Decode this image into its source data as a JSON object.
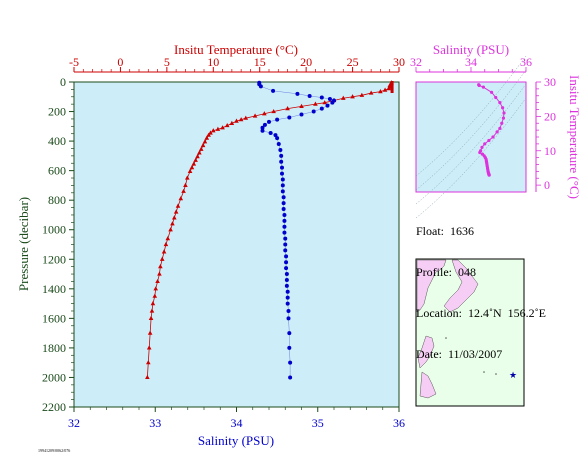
{
  "colors": {
    "temperature": "#cc0000",
    "salinity": "#0000cc",
    "ts_curve": "#dd33dd",
    "plot_bg": "#cdeef8",
    "axis_green": "#1a4a1a",
    "map_land": "#f5cdf5",
    "map_sea": "#eaffea"
  },
  "labels": {
    "top_axis": "Insitu Temperature (°C)",
    "bottom_axis": "Salinity (PSU)",
    "left_axis": "Pressure (decibar)",
    "ts_top_axis": "Salinity (PSU)",
    "ts_right_axis": "Insitu Temperature (°C)",
    "footer": "19941209/0062/076"
  },
  "info": {
    "float": "Float:  1636",
    "profile": "Profile:  048",
    "location": "Location:  12.4˚N  156.2˚E",
    "date": "Date:  11/03/2007"
  },
  "chart_data": [
    {
      "type": "line",
      "name": "profile",
      "pressure_range": [
        2200,
        0
      ],
      "pressure_ticks": [
        0,
        200,
        400,
        600,
        800,
        1000,
        1200,
        1400,
        1600,
        1800,
        2000,
        2200
      ],
      "temperature_range": [
        -5,
        30
      ],
      "temperature_ticks": [
        -5,
        0,
        5,
        10,
        15,
        20,
        25,
        30
      ],
      "salinity_range": [
        32,
        36
      ],
      "salinity_ticks": [
        32,
        33,
        34,
        35,
        36
      ],
      "series": [
        {
          "name": "Insitu Temperature",
          "marker": "triangle",
          "points": [
            [
              29.2,
              5
            ],
            [
              29.1,
              15
            ],
            [
              29.0,
              25
            ],
            [
              29.0,
              35
            ],
            [
              28.9,
              45
            ],
            [
              28.5,
              55
            ],
            [
              28.0,
              65
            ],
            [
              27.0,
              75
            ],
            [
              26.0,
              90
            ],
            [
              25.0,
              100
            ],
            [
              24.0,
              110
            ],
            [
              23.0,
              125
            ],
            [
              22.0,
              140
            ],
            [
              21.0,
              150
            ],
            [
              19.5,
              165
            ],
            [
              18.0,
              180
            ],
            [
              16.5,
              200
            ],
            [
              15.5,
              215
            ],
            [
              14.5,
              230
            ],
            [
              13.5,
              245
            ],
            [
              13.0,
              255
            ],
            [
              12.5,
              265
            ],
            [
              12.0,
              280
            ],
            [
              11.5,
              295
            ],
            [
              11.0,
              310
            ],
            [
              10.5,
              320
            ],
            [
              10.0,
              330
            ],
            [
              9.7,
              345
            ],
            [
              9.5,
              360
            ],
            [
              9.3,
              380
            ],
            [
              9.1,
              405
            ],
            [
              8.9,
              430
            ],
            [
              8.7,
              455
            ],
            [
              8.5,
              480
            ],
            [
              8.3,
              505
            ],
            [
              8.1,
              530
            ],
            [
              7.9,
              555
            ],
            [
              7.7,
              580
            ],
            [
              7.5,
              605
            ],
            [
              7.2,
              650
            ],
            [
              7.0,
              700
            ],
            [
              6.8,
              740
            ],
            [
              6.5,
              790
            ],
            [
              6.2,
              840
            ],
            [
              6.0,
              880
            ],
            [
              5.8,
              920
            ],
            [
              5.6,
              960
            ],
            [
              5.4,
              1000
            ],
            [
              5.1,
              1060
            ],
            [
              4.9,
              1100
            ],
            [
              4.7,
              1150
            ],
            [
              4.5,
              1200
            ],
            [
              4.3,
              1250
            ],
            [
              4.2,
              1300
            ],
            [
              4.0,
              1350
            ],
            [
              3.8,
              1400
            ],
            [
              3.7,
              1450
            ],
            [
              3.5,
              1500
            ],
            [
              3.4,
              1550
            ],
            [
              3.3,
              1600
            ],
            [
              3.2,
              1700
            ],
            [
              3.1,
              1800
            ],
            [
              3.0,
              1900
            ],
            [
              2.9,
              2000
            ]
          ]
        },
        {
          "name": "Salinity",
          "marker": "dot",
          "points": [
            [
              34.28,
              5
            ],
            [
              34.28,
              15
            ],
            [
              34.3,
              30
            ],
            [
              34.45,
              60
            ],
            [
              34.75,
              80
            ],
            [
              34.9,
              95
            ],
            [
              35.05,
              105
            ],
            [
              35.15,
              115
            ],
            [
              35.2,
              125
            ],
            [
              35.18,
              140
            ],
            [
              35.12,
              160
            ],
            [
              35.05,
              180
            ],
            [
              34.95,
              200
            ],
            [
              34.8,
              220
            ],
            [
              34.65,
              240
            ],
            [
              34.5,
              255
            ],
            [
              34.4,
              270
            ],
            [
              34.35,
              290
            ],
            [
              34.32,
              310
            ],
            [
              34.32,
              330
            ],
            [
              34.42,
              345
            ],
            [
              34.48,
              360
            ],
            [
              34.5,
              380
            ],
            [
              34.52,
              420
            ],
            [
              34.54,
              460
            ],
            [
              34.55,
              500
            ],
            [
              34.55,
              540
            ],
            [
              34.56,
              580
            ],
            [
              34.56,
              620
            ],
            [
              34.57,
              660
            ],
            [
              34.57,
              700
            ],
            [
              34.57,
              740
            ],
            [
              34.58,
              780
            ],
            [
              34.58,
              820
            ],
            [
              34.58,
              860
            ],
            [
              34.59,
              900
            ],
            [
              34.59,
              940
            ],
            [
              34.59,
              980
            ],
            [
              34.59,
              1020
            ],
            [
              34.6,
              1060
            ],
            [
              34.6,
              1100
            ],
            [
              34.6,
              1140
            ],
            [
              34.61,
              1180
            ],
            [
              34.61,
              1220
            ],
            [
              34.61,
              1260
            ],
            [
              34.62,
              1300
            ],
            [
              34.62,
              1340
            ],
            [
              34.62,
              1380
            ],
            [
              34.63,
              1420
            ],
            [
              34.63,
              1460
            ],
            [
              34.63,
              1500
            ],
            [
              34.64,
              1550
            ],
            [
              34.64,
              1600
            ],
            [
              34.65,
              1700
            ],
            [
              34.65,
              1800
            ],
            [
              34.66,
              1900
            ],
            [
              34.66,
              2000
            ]
          ]
        }
      ]
    },
    {
      "type": "scatter",
      "name": "ts_diagram",
      "salinity_range": [
        32,
        36
      ],
      "salinity_ticks": [
        32,
        34,
        36
      ],
      "temperature_range": [
        -2,
        30
      ],
      "temperature_ticks": [
        0,
        10,
        20,
        30
      ],
      "points": [
        [
          34.28,
          29.2
        ],
        [
          34.3,
          29.0
        ],
        [
          34.45,
          28.5
        ],
        [
          34.75,
          27.0
        ],
        [
          34.9,
          25.5
        ],
        [
          35.05,
          24.0
        ],
        [
          35.15,
          22.5
        ],
        [
          35.2,
          21.0
        ],
        [
          35.18,
          19.5
        ],
        [
          35.12,
          18.0
        ],
        [
          35.05,
          16.5
        ],
        [
          34.95,
          15.5
        ],
        [
          34.8,
          14.0
        ],
        [
          34.65,
          13.0
        ],
        [
          34.5,
          12.0
        ],
        [
          34.4,
          11.0
        ],
        [
          34.35,
          10.0
        ],
        [
          34.32,
          9.5
        ],
        [
          34.42,
          9.0
        ],
        [
          34.48,
          8.5
        ],
        [
          34.52,
          8.0
        ],
        [
          34.55,
          7.5
        ],
        [
          34.56,
          7.0
        ],
        [
          34.57,
          6.5
        ],
        [
          34.58,
          6.0
        ],
        [
          34.59,
          5.5
        ],
        [
          34.6,
          5.0
        ],
        [
          34.61,
          4.5
        ],
        [
          34.62,
          4.0
        ],
        [
          34.63,
          3.7
        ],
        [
          34.64,
          3.4
        ],
        [
          34.65,
          3.2
        ],
        [
          34.66,
          3.0
        ],
        [
          34.66,
          2.9
        ]
      ]
    }
  ],
  "map": {
    "float_marker": "★"
  }
}
